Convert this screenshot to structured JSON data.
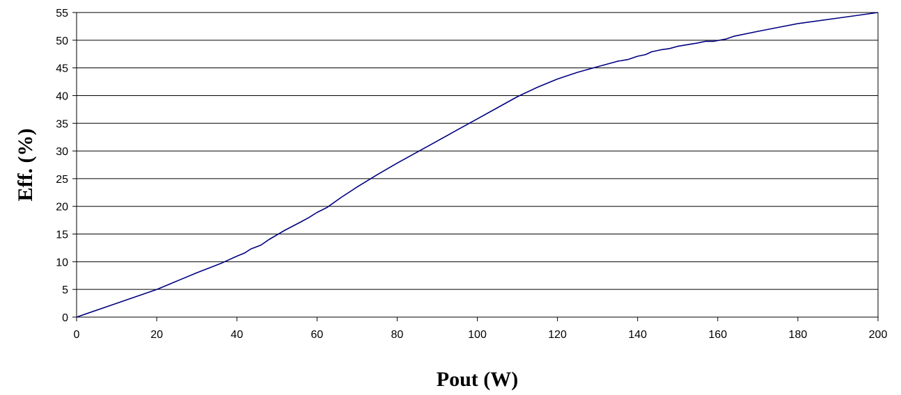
{
  "chart_data": {
    "type": "line",
    "title": "",
    "xlabel": "Pout (W)",
    "ylabel": "Eff. (%)",
    "xlim": [
      0,
      200
    ],
    "ylim": [
      0,
      55
    ],
    "xticks": [
      0,
      20,
      40,
      60,
      80,
      100,
      120,
      140,
      160,
      180,
      200
    ],
    "yticks": [
      0,
      5,
      10,
      15,
      20,
      25,
      30,
      35,
      40,
      45,
      50,
      55
    ],
    "grid": "horizontal",
    "legend": "none",
    "line_color": "#000080",
    "series": [
      {
        "x": [
          0,
          10,
          20,
          30,
          36,
          40,
          42,
          43.5,
          46,
          48,
          52,
          56,
          58,
          60,
          62.5,
          66,
          70,
          75,
          80,
          85,
          90,
          95,
          100,
          105,
          110,
          115,
          120,
          125,
          130,
          135,
          137.5,
          140,
          142,
          143.5,
          146,
          148,
          150,
          155,
          157,
          159,
          162,
          164,
          170,
          175,
          180,
          190,
          200
        ],
        "y": [
          0,
          2.5,
          5,
          8,
          9.7,
          11,
          11.6,
          12.3,
          13,
          14,
          15.7,
          17.2,
          18,
          18.9,
          19.8,
          21.6,
          23.5,
          25.7,
          27.8,
          29.8,
          31.8,
          33.8,
          35.8,
          37.8,
          39.8,
          41.5,
          43,
          44.2,
          45.2,
          46.2,
          46.5,
          47.1,
          47.4,
          47.9,
          48.3,
          48.5,
          48.9,
          49.5,
          49.8,
          49.8,
          50.2,
          50.7,
          51.6,
          52.3,
          53,
          54,
          55
        ]
      }
    ]
  }
}
